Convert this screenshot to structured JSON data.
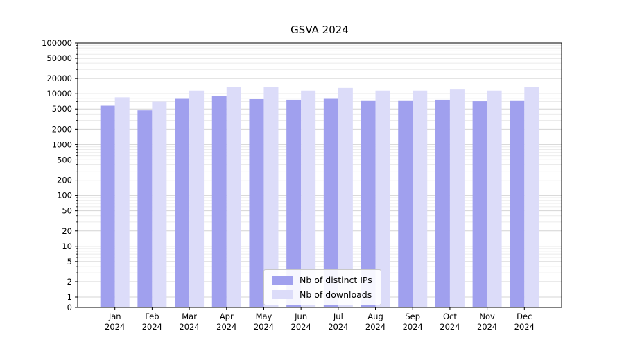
{
  "title": "GSVA 2024",
  "chart_data": {
    "type": "bar",
    "title": "GSVA 2024",
    "categories": [
      "Jan",
      "Feb",
      "Mar",
      "Apr",
      "May",
      "Jun",
      "Jul",
      "Aug",
      "Sep",
      "Oct",
      "Nov",
      "Dec"
    ],
    "year": "2024",
    "series": [
      {
        "name": "Nb of distinct IPs",
        "color": "#a0a0ee",
        "values": [
          5800,
          4700,
          8200,
          8900,
          8000,
          7600,
          8200,
          7400,
          7400,
          7600,
          7100,
          7400
        ]
      },
      {
        "name": "Nb of downloads",
        "color": "#dcdcf9",
        "values": [
          8500,
          7000,
          11500,
          13500,
          13500,
          11500,
          13000,
          11500,
          11500,
          12500,
          11500,
          13500
        ]
      }
    ],
    "yscale": "symlog",
    "ylim": [
      0,
      100000
    ],
    "yticks": [
      0,
      1,
      2,
      5,
      10,
      20,
      50,
      100,
      200,
      500,
      1000,
      2000,
      5000,
      10000,
      20000,
      50000,
      100000
    ],
    "grid": true,
    "legend_position": "lower center",
    "xlabel": "",
    "ylabel": ""
  },
  "colors": {
    "major_grid": "#d4d4d4",
    "minor_grid": "#ebebeb",
    "axis": "#000000",
    "background": "#ffffff"
  }
}
